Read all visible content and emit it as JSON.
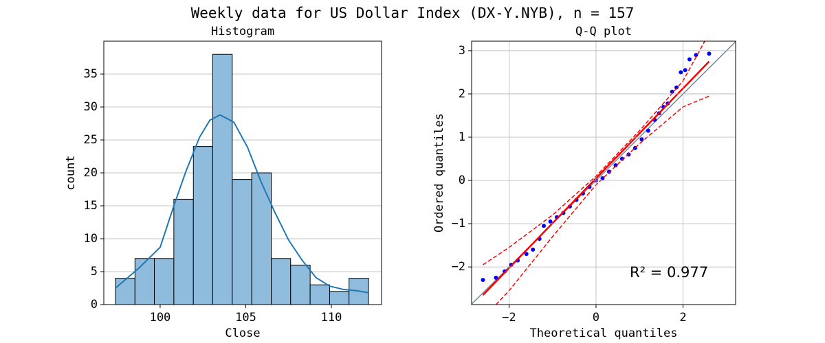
{
  "title": "Weekly data for US Dollar Index (DX-Y.NYB), n = 157",
  "chart_data": [
    {
      "type": "histogram",
      "title": "Histogram",
      "xlabel": "Close",
      "ylabel": "count",
      "bins": [
        97.39,
        98.53,
        99.66,
        100.8,
        101.94,
        103.07,
        104.21,
        105.35,
        106.49,
        107.62,
        108.76,
        109.9,
        111.03,
        112.17
      ],
      "values": [
        4,
        7,
        7,
        16,
        24,
        38,
        19,
        20,
        7,
        6,
        3,
        2,
        4
      ],
      "color": "#8fbbdc",
      "edgecolor": "#000000",
      "kde": {
        "color": "#1f77b4",
        "x": [
          97.39,
          98.7,
          100.0,
          100.8,
          101.5,
          102.3,
          102.9,
          103.5,
          104.3,
          105.1,
          105.9,
          106.7,
          107.5,
          108.3,
          109.1,
          109.9,
          110.7,
          111.5,
          112.17
        ],
        "y": [
          2.5,
          5.4,
          8.7,
          15.0,
          20.2,
          25.4,
          28.0,
          28.8,
          27.7,
          23.9,
          18.6,
          14.0,
          9.8,
          6.7,
          4.1,
          2.8,
          2.3,
          2.1,
          1.8
        ]
      },
      "xlim": [
        96.71,
        112.93
      ],
      "ylim": [
        0,
        40
      ],
      "xticks": [
        100,
        105,
        110
      ],
      "yticks": [
        0,
        5,
        10,
        15,
        20,
        25,
        30,
        35
      ],
      "grid": "y"
    },
    {
      "type": "qq",
      "title": "Q-Q plot",
      "xlabel": "Theoretical quantiles",
      "ylabel": "Ordered quantiles",
      "points": {
        "color": "#0000ff",
        "x": [
          -2.6,
          -2.3,
          -2.1,
          -1.95,
          -1.8,
          -1.6,
          -1.45,
          -1.3,
          -1.2,
          -1.05,
          -0.9,
          -0.75,
          -0.6,
          -0.45,
          -0.3,
          -0.15,
          0,
          0.15,
          0.3,
          0.45,
          0.6,
          0.75,
          0.9,
          1.05,
          1.2,
          1.35,
          1.45,
          1.55,
          1.65,
          1.75,
          1.85,
          1.95,
          2.05,
          2.15,
          2.3,
          2.6
        ],
        "y": [
          -2.3,
          -2.25,
          -2.1,
          -1.95,
          -1.85,
          -1.7,
          -1.6,
          -1.35,
          -1.05,
          -0.95,
          -0.85,
          -0.75,
          -0.6,
          -0.45,
          -0.3,
          -0.15,
          0,
          0.05,
          0.2,
          0.35,
          0.5,
          0.6,
          0.75,
          0.95,
          1.15,
          1.4,
          1.55,
          1.7,
          1.78,
          2.05,
          2.15,
          2.5,
          2.55,
          2.8,
          2.9,
          2.93
        ]
      },
      "fit": {
        "color": "#ff0000",
        "x": [
          -2.6,
          2.6
        ],
        "y": [
          -2.65,
          2.75
        ]
      },
      "band_upper": {
        "color": "#ff0000",
        "x": [
          -2.6,
          -2,
          -1,
          0,
          1,
          2,
          2.5
        ],
        "y": [
          -1.95,
          -1.55,
          -0.8,
          0.1,
          1.15,
          2.3,
          3.22
        ]
      },
      "band_lower": {
        "color": "#ff0000",
        "x": [
          -2.3,
          -2,
          -1,
          0,
          1,
          2,
          2.6
        ],
        "y": [
          -2.87,
          -2.55,
          -1.3,
          -0.1,
          0.85,
          1.7,
          1.95
        ]
      },
      "identity_color": "#778899",
      "annotation": "R² = 0.977",
      "xlim": [
        -2.86,
        3.21
      ],
      "ylim": [
        -2.87,
        3.22
      ],
      "xticks": [
        {
          "value": -2,
          "label": "−2"
        },
        0,
        2
      ],
      "yticks": [
        {
          "value": -2,
          "label": "−2"
        },
        {
          "value": -1,
          "label": "−1"
        },
        0,
        1,
        2,
        3
      ],
      "grid": "both"
    }
  ]
}
